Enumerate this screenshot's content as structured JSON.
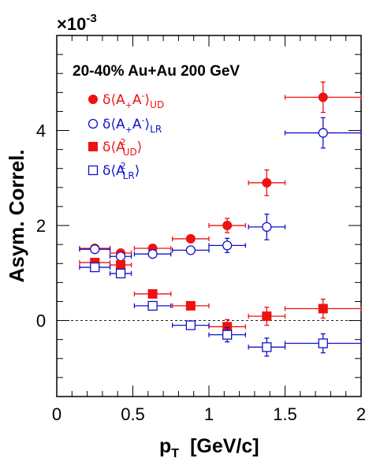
{
  "chart_data": {
    "type": "scatter",
    "exponent_label": "×10",
    "exponent_power": "-3",
    "annotation": "20-40% Au+Au 200 GeV",
    "xlabel": "p",
    "xlabel_sub": "T",
    "xlabel_unit": "[GeV/c]",
    "ylabel": "Asym. Correl.",
    "xlim": [
      0,
      2
    ],
    "ylim": [
      -1.6,
      6.0
    ],
    "x_ticks": [
      "0",
      "0.5",
      "1",
      "1.5",
      "2"
    ],
    "y_ticks": [
      "0",
      "2",
      "4"
    ],
    "reference_line_y": 0,
    "series": [
      {
        "legend_prefix": "δ⟨A",
        "legend_sub1": "+",
        "legend_mid": "A",
        "legend_sub2": "-",
        "legend_close": "⟩",
        "legend_tag": "UD",
        "color": "#ee1111",
        "marker": "filled-circle",
        "points": [
          {
            "x": 0.25,
            "y": 1.52,
            "xerr": 0.1,
            "yerr": 0.05
          },
          {
            "x": 0.42,
            "y": 1.42,
            "xerr": 0.07,
            "yerr": 0.06
          },
          {
            "x": 0.63,
            "y": 1.52,
            "xerr": 0.12,
            "yerr": 0.06
          },
          {
            "x": 0.88,
            "y": 1.72,
            "xerr": 0.12,
            "yerr": 0.07
          },
          {
            "x": 1.12,
            "y": 2.0,
            "xerr": 0.12,
            "yerr": 0.15
          },
          {
            "x": 1.38,
            "y": 2.9,
            "xerr": 0.12,
            "yerr": 0.27
          },
          {
            "x": 1.75,
            "y": 4.7,
            "xerr": 0.25,
            "yerr": 0.32
          }
        ]
      },
      {
        "legend_prefix": "δ⟨A",
        "legend_sub1": "+",
        "legend_mid": "A",
        "legend_sub2": "-",
        "legend_close": "⟩",
        "legend_tag": "LR",
        "color": "#1111cc",
        "marker": "open-circle",
        "points": [
          {
            "x": 0.25,
            "y": 1.5,
            "xerr": 0.1,
            "yerr": 0.05
          },
          {
            "x": 0.42,
            "y": 1.35,
            "xerr": 0.07,
            "yerr": 0.06
          },
          {
            "x": 0.63,
            "y": 1.4,
            "xerr": 0.12,
            "yerr": 0.06
          },
          {
            "x": 0.88,
            "y": 1.48,
            "xerr": 0.12,
            "yerr": 0.07
          },
          {
            "x": 1.12,
            "y": 1.58,
            "xerr": 0.12,
            "yerr": 0.15
          },
          {
            "x": 1.38,
            "y": 1.97,
            "xerr": 0.12,
            "yerr": 0.27
          },
          {
            "x": 1.75,
            "y": 3.95,
            "xerr": 0.25,
            "yerr": 0.32
          }
        ]
      },
      {
        "legend_prefix": "δ⟨A",
        "legend_sup": "2",
        "legend_tag": "UD",
        "legend_close": "⟩",
        "color": "#ee1111",
        "marker": "filled-square",
        "points": [
          {
            "x": 0.25,
            "y": 1.22,
            "xerr": 0.1,
            "yerr": 0.05
          },
          {
            "x": 0.42,
            "y": 1.17,
            "xerr": 0.07,
            "yerr": 0.06
          },
          {
            "x": 0.63,
            "y": 0.56,
            "xerr": 0.12,
            "yerr": 0.06
          },
          {
            "x": 0.88,
            "y": 0.31,
            "xerr": 0.12,
            "yerr": 0.07
          },
          {
            "x": 1.12,
            "y": -0.13,
            "xerr": 0.12,
            "yerr": 0.15
          },
          {
            "x": 1.38,
            "y": 0.09,
            "xerr": 0.12,
            "yerr": 0.19
          },
          {
            "x": 1.75,
            "y": 0.25,
            "xerr": 0.25,
            "yerr": 0.2
          }
        ]
      },
      {
        "legend_prefix": "δ⟨A",
        "legend_sup": "2",
        "legend_tag": "LR",
        "legend_close": "⟩",
        "color": "#1111cc",
        "marker": "open-square",
        "points": [
          {
            "x": 0.25,
            "y": 1.12,
            "xerr": 0.1,
            "yerr": 0.05
          },
          {
            "x": 0.42,
            "y": 0.99,
            "xerr": 0.07,
            "yerr": 0.06
          },
          {
            "x": 0.63,
            "y": 0.31,
            "xerr": 0.12,
            "yerr": 0.06
          },
          {
            "x": 0.88,
            "y": -0.1,
            "xerr": 0.12,
            "yerr": 0.07
          },
          {
            "x": 1.12,
            "y": -0.3,
            "xerr": 0.12,
            "yerr": 0.15
          },
          {
            "x": 1.38,
            "y": -0.56,
            "xerr": 0.12,
            "yerr": 0.19
          },
          {
            "x": 1.75,
            "y": -0.48,
            "xerr": 0.25,
            "yerr": 0.2
          }
        ]
      }
    ]
  }
}
